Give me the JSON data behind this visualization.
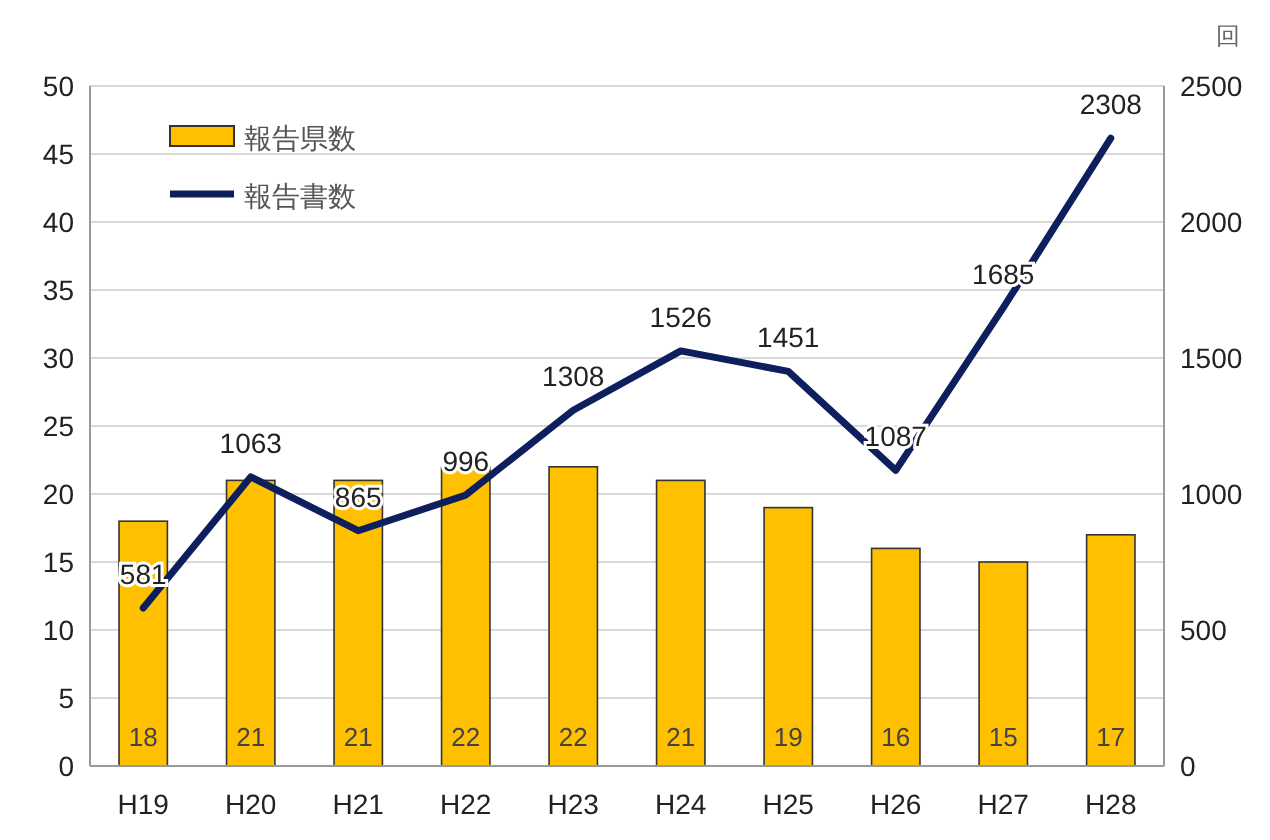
{
  "chart_data": {
    "type": "bar",
    "y2label": "回",
    "categories": [
      "H19",
      "H20",
      "H21",
      "H22",
      "H23",
      "H24",
      "H25",
      "H26",
      "H27",
      "H28"
    ],
    "series": [
      {
        "name": "報告県数",
        "color": "#ffc000",
        "values": [
          18,
          21,
          21,
          22,
          22,
          21,
          19,
          16,
          15,
          17
        ]
      },
      {
        "name": "報告書数",
        "type": "line",
        "axis": "y2",
        "color": "#0d1f5c",
        "values": [
          581,
          1063,
          865,
          996,
          1308,
          1526,
          1451,
          1087,
          1685,
          2308
        ]
      }
    ],
    "ylim": [
      0,
      50
    ],
    "yticks": [
      0,
      5,
      10,
      15,
      20,
      25,
      30,
      35,
      40,
      45,
      50
    ],
    "y2lim": [
      0,
      2500
    ],
    "y2ticks": [
      0,
      500,
      1000,
      1500,
      2000,
      2500
    ],
    "grid": "y",
    "legend": "top left",
    "data_labels": true,
    "marker": "none"
  }
}
